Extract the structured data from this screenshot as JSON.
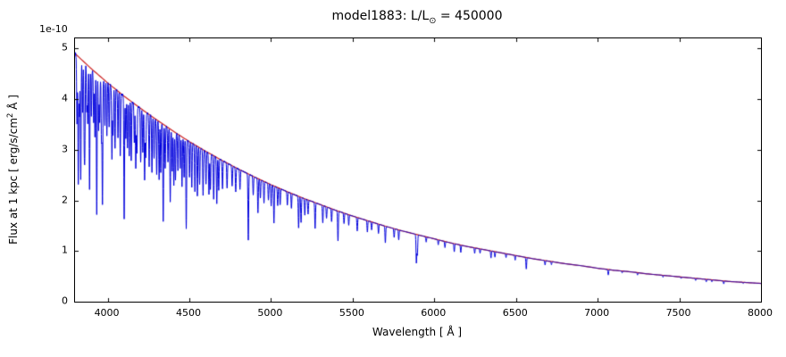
{
  "figure": {
    "title": {
      "prefix": "model1883: L/L",
      "sub": "⊙",
      "suffix": " = 450000"
    },
    "offset_text": "1e-10",
    "xlabel": {
      "text": "Wavelength [ Å ]"
    },
    "ylabel": {
      "prefix": "Flux at 1 kpc [ erg/s/cm",
      "sup": "2",
      "suffix": " Å ]"
    }
  },
  "colors": {
    "spectrum": "#0000dd",
    "continuum": "#cc2020",
    "axis": "#000000",
    "background": "#ffffff"
  },
  "chart_data": {
    "type": "line",
    "title": "model1883: L/L⊙ = 450000",
    "xlabel": "Wavelength [ Å ]",
    "ylabel": "Flux at 1 kpc [ erg/s/cm² Å ]",
    "y_scale_factor": "1e-10",
    "xlim": [
      3800,
      8000
    ],
    "ylim": [
      0,
      5.2
    ],
    "x_ticks": [
      4000,
      4500,
      5000,
      5500,
      6000,
      6500,
      7000,
      7500,
      8000
    ],
    "y_ticks": [
      0,
      1,
      2,
      3,
      4,
      5
    ],
    "grid": false,
    "legend": "none",
    "series": [
      {
        "name": "spectrum",
        "description": "blue stellar spectrum with absorption lines",
        "color": "#0000dd"
      },
      {
        "name": "continuum",
        "description": "smooth red continuum fit",
        "color": "#cc2020"
      }
    ],
    "continuum_points": [
      [
        3800,
        4.9
      ],
      [
        3900,
        4.6
      ],
      [
        4000,
        4.32
      ],
      [
        4100,
        4.06
      ],
      [
        4200,
        3.82
      ],
      [
        4300,
        3.59
      ],
      [
        4400,
        3.37
      ],
      [
        4500,
        3.16
      ],
      [
        4600,
        2.97
      ],
      [
        4700,
        2.79
      ],
      [
        4800,
        2.62
      ],
      [
        4900,
        2.46
      ],
      [
        5000,
        2.31
      ],
      [
        5100,
        2.17
      ],
      [
        5200,
        2.04
      ],
      [
        5300,
        1.92
      ],
      [
        5400,
        1.8
      ],
      [
        5500,
        1.69
      ],
      [
        5600,
        1.59
      ],
      [
        5700,
        1.49
      ],
      [
        5800,
        1.4
      ],
      [
        5900,
        1.32
      ],
      [
        6000,
        1.24
      ],
      [
        6100,
        1.16
      ],
      [
        6200,
        1.09
      ],
      [
        6300,
        1.03
      ],
      [
        6400,
        0.97
      ],
      [
        6500,
        0.91
      ],
      [
        6600,
        0.85
      ],
      [
        6700,
        0.8
      ],
      [
        6800,
        0.75
      ],
      [
        6900,
        0.71
      ],
      [
        7000,
        0.66
      ],
      [
        7100,
        0.62
      ],
      [
        7200,
        0.59
      ],
      [
        7300,
        0.55
      ],
      [
        7400,
        0.52
      ],
      [
        7500,
        0.49
      ],
      [
        7600,
        0.46
      ],
      [
        7700,
        0.43
      ],
      [
        7800,
        0.4
      ],
      [
        7900,
        0.38
      ],
      [
        8000,
        0.36
      ]
    ],
    "absorption_lines": [
      [
        3812,
        0.28
      ],
      [
        3820,
        0.52
      ],
      [
        3827,
        0.24
      ],
      [
        3835,
        0.5
      ],
      [
        3846,
        0.22
      ],
      [
        3856,
        0.3
      ],
      [
        3860,
        0.34
      ],
      [
        3872,
        0.2
      ],
      [
        3878,
        0.24
      ],
      [
        3889,
        0.52
      ],
      [
        3900,
        0.2
      ],
      [
        3914,
        0.22
      ],
      [
        3922,
        0.28
      ],
      [
        3933,
        0.62
      ],
      [
        3944,
        0.24
      ],
      [
        3951,
        0.2
      ],
      [
        3962,
        0.28
      ],
      [
        3968,
        0.56
      ],
      [
        3983,
        0.2
      ],
      [
        3995,
        0.24
      ],
      [
        4009,
        0.2
      ],
      [
        4026,
        0.34
      ],
      [
        4033,
        0.22
      ],
      [
        4045,
        0.28
      ],
      [
        4063,
        0.22
      ],
      [
        4077,
        0.3
      ],
      [
        4101,
        0.6
      ],
      [
        4111,
        0.2
      ],
      [
        4121,
        0.24
      ],
      [
        4132,
        0.28
      ],
      [
        4144,
        0.3
      ],
      [
        4163,
        0.2
      ],
      [
        4172,
        0.32
      ],
      [
        4179,
        0.24
      ],
      [
        4202,
        0.28
      ],
      [
        4215,
        0.22
      ],
      [
        4226,
        0.36
      ],
      [
        4233,
        0.24
      ],
      [
        4254,
        0.28
      ],
      [
        4271,
        0.3
      ],
      [
        4284,
        0.22
      ],
      [
        4300,
        0.3
      ],
      [
        4315,
        0.32
      ],
      [
        4325,
        0.28
      ],
      [
        4340,
        0.55
      ],
      [
        4352,
        0.24
      ],
      [
        4369,
        0.2
      ],
      [
        4383,
        0.42
      ],
      [
        4395,
        0.24
      ],
      [
        4405,
        0.32
      ],
      [
        4415,
        0.28
      ],
      [
        4430,
        0.22
      ],
      [
        4444,
        0.2
      ],
      [
        4455,
        0.3
      ],
      [
        4468,
        0.24
      ],
      [
        4481,
        0.55
      ],
      [
        4501,
        0.22
      ],
      [
        4515,
        0.28
      ],
      [
        4534,
        0.3
      ],
      [
        4549,
        0.32
      ],
      [
        4563,
        0.24
      ],
      [
        4584,
        0.3
      ],
      [
        4602,
        0.22
      ],
      [
        4620,
        0.28
      ],
      [
        4629,
        0.24
      ],
      [
        4649,
        0.3
      ],
      [
        4668,
        0.32
      ],
      [
        4680,
        0.22
      ],
      [
        4703,
        0.2
      ],
      [
        4731,
        0.18
      ],
      [
        4762,
        0.15
      ],
      [
        4784,
        0.18
      ],
      [
        4810,
        0.15
      ],
      [
        4861,
        0.52
      ],
      [
        4891,
        0.15
      ],
      [
        4920,
        0.28
      ],
      [
        4935,
        0.15
      ],
      [
        4957,
        0.18
      ],
      [
        4984,
        0.14
      ],
      [
        5001,
        0.18
      ],
      [
        5018,
        0.32
      ],
      [
        5041,
        0.16
      ],
      [
        5056,
        0.14
      ],
      [
        5100,
        0.12
      ],
      [
        5125,
        0.14
      ],
      [
        5169,
        0.3
      ],
      [
        5184,
        0.24
      ],
      [
        5207,
        0.16
      ],
      [
        5227,
        0.14
      ],
      [
        5270,
        0.26
      ],
      [
        5317,
        0.18
      ],
      [
        5340,
        0.12
      ],
      [
        5371,
        0.14
      ],
      [
        5410,
        0.33
      ],
      [
        5447,
        0.12
      ],
      [
        5476,
        0.12
      ],
      [
        5528,
        0.16
      ],
      [
        5590,
        0.14
      ],
      [
        5616,
        0.1
      ],
      [
        5658,
        0.12
      ],
      [
        5700,
        0.22
      ],
      [
        5754,
        0.12
      ],
      [
        5782,
        0.14
      ],
      [
        5890,
        0.42
      ],
      [
        5896,
        0.3
      ],
      [
        5950,
        0.08
      ],
      [
        6024,
        0.08
      ],
      [
        6065,
        0.1
      ],
      [
        6122,
        0.14
      ],
      [
        6162,
        0.13
      ],
      [
        6247,
        0.1
      ],
      [
        6280,
        0.08
      ],
      [
        6347,
        0.14
      ],
      [
        6371,
        0.11
      ],
      [
        6439,
        0.08
      ],
      [
        6495,
        0.1
      ],
      [
        6563,
        0.26
      ],
      [
        6678,
        0.11
      ],
      [
        6717,
        0.08
      ],
      [
        7065,
        0.17
      ],
      [
        7150,
        0.06
      ],
      [
        7244,
        0.08
      ],
      [
        7400,
        0.07
      ],
      [
        7511,
        0.06
      ],
      [
        7600,
        0.09
      ],
      [
        7665,
        0.11
      ],
      [
        7699,
        0.09
      ],
      [
        7772,
        0.14
      ],
      [
        7891,
        0.06
      ]
    ],
    "line_sigma_angstrom": 2.2
  }
}
